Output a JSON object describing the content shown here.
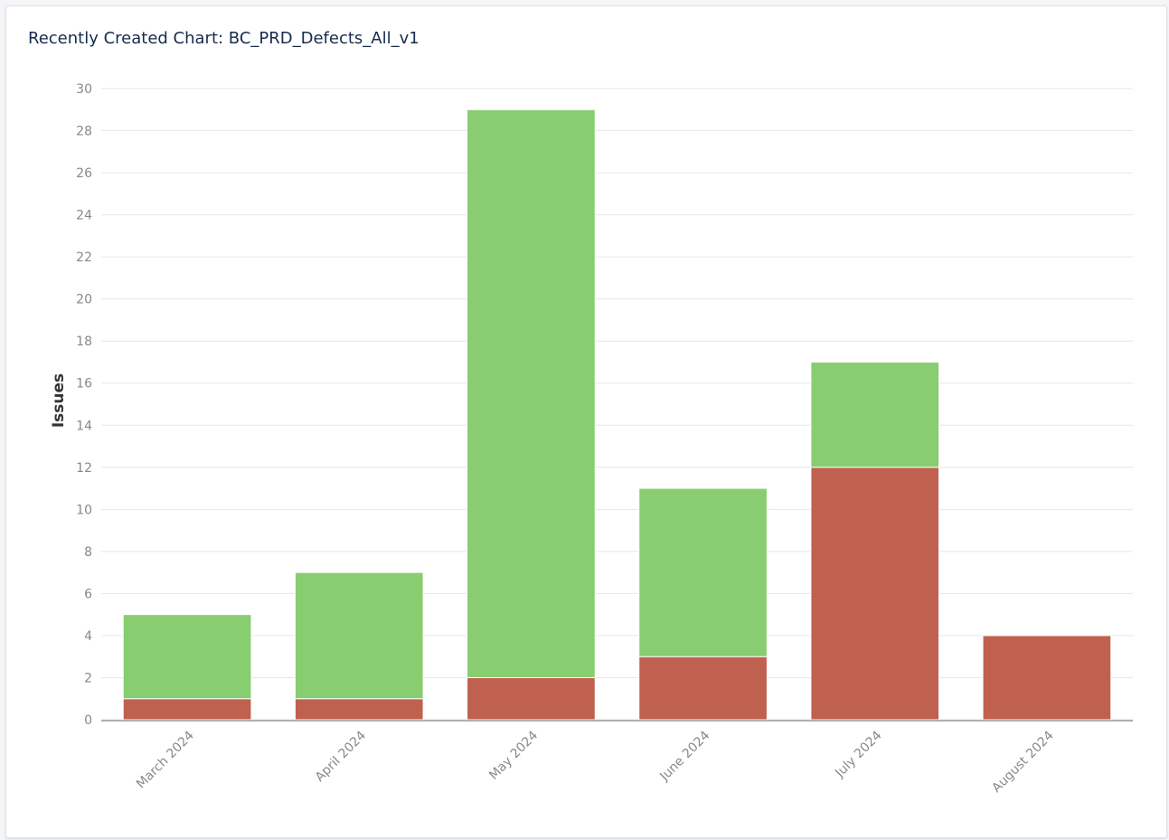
{
  "gadget": {
    "title": "Recently Created Chart: BC_PRD_Defects_All_v1"
  },
  "chart_data": {
    "type": "bar",
    "stacked": true,
    "title": "Recently Created Chart: BC_PRD_Defects_All_v1",
    "xlabel": "",
    "ylabel": "Issues",
    "ylim": [
      0,
      30
    ],
    "yticks": [
      0,
      2,
      4,
      6,
      8,
      10,
      12,
      14,
      16,
      18,
      20,
      22,
      24,
      26,
      28,
      30
    ],
    "grid": true,
    "legend": "none",
    "categories": [
      "March 2024",
      "April 2024",
      "May 2024",
      "June 2024",
      "July 2024",
      "August 2024"
    ],
    "series": [
      {
        "key": "unresolved",
        "color": "#c0614f",
        "values": [
          1,
          1,
          2,
          3,
          12,
          4
        ]
      },
      {
        "key": "resolved",
        "color": "#88cd70",
        "values": [
          4,
          6,
          27,
          8,
          5,
          0
        ]
      }
    ]
  }
}
